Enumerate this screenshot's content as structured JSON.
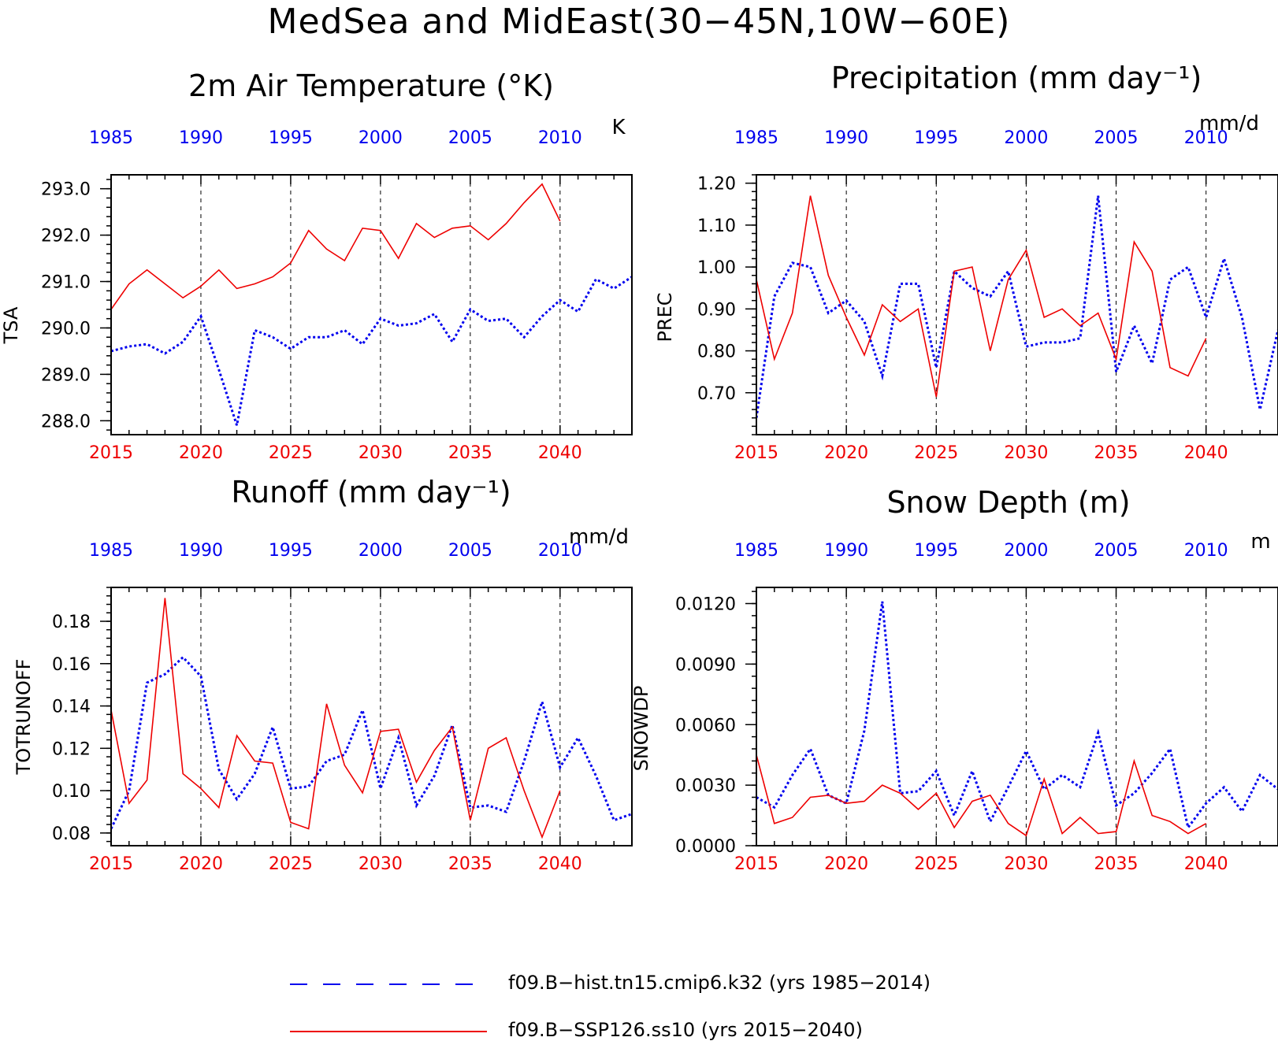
{
  "title": "MedSea and MidEast(30−45N,10W−60E)",
  "colors": {
    "hist": "#0000ee",
    "ssp": "#ee0000"
  },
  "legend": [
    {
      "label": "f09.B−hist.tn15.cmip6.k32 (yrs 1985−2014)",
      "style": "dashed",
      "color": "#0000ee"
    },
    {
      "label": "f09.B−SSP126.ss10 (yrs 2015−2040)",
      "style": "solid",
      "color": "#ee0000"
    }
  ],
  "chart_data": [
    {
      "type": "line",
      "title": "2m Air Temperature (°K)",
      "ylabel": "TSA",
      "unit": "K",
      "ylim": [
        287.7,
        293.3
      ],
      "yticks": [
        "288.0",
        "289.0",
        "290.0",
        "291.0",
        "292.0",
        "293.0"
      ],
      "xlim_bottom": [
        2015,
        2044
      ],
      "xticks_bottom": [
        2015,
        2020,
        2025,
        2030,
        2035,
        2040
      ],
      "xticks_top": [
        1985,
        1990,
        1995,
        2000,
        2005,
        2010
      ],
      "series": [
        {
          "name": "f09.B−hist.tn15.cmip6.k32",
          "style": "dotted",
          "values": [
            289.5,
            289.6,
            289.65,
            289.45,
            289.7,
            290.25,
            289.1,
            287.9,
            289.95,
            289.8,
            289.55,
            289.8,
            289.8,
            289.95,
            289.65,
            290.2,
            290.05,
            290.1,
            290.3,
            289.7,
            290.4,
            290.15,
            290.2,
            289.8,
            290.25,
            290.6,
            290.35,
            291.05,
            290.85,
            291.1
          ]
        },
        {
          "name": "f09.B−SSP126.ss10",
          "style": "solid",
          "values": [
            290.4,
            290.95,
            291.25,
            290.95,
            290.65,
            290.9,
            291.25,
            290.85,
            290.95,
            291.1,
            291.4,
            292.1,
            291.7,
            291.45,
            292.15,
            292.1,
            291.5,
            292.25,
            291.95,
            292.15,
            292.2,
            291.9,
            292.25,
            292.7,
            293.1,
            292.3
          ]
        }
      ]
    },
    {
      "type": "line",
      "title": "Precipitation (mm day⁻¹)",
      "ylabel": "PREC",
      "unit": "mm/d",
      "ylim": [
        0.6,
        1.22
      ],
      "yticks": [
        "0.70",
        "0.80",
        "0.90",
        "1.00",
        "1.10",
        "1.20"
      ],
      "xlim_bottom": [
        2015,
        2044
      ],
      "xticks_bottom": [
        2015,
        2020,
        2025,
        2030,
        2035,
        2040
      ],
      "xticks_top": [
        1985,
        1990,
        1995,
        2000,
        2005,
        2010
      ],
      "series": [
        {
          "name": "f09.B−hist.tn15.cmip6.k32",
          "style": "dotted",
          "values": [
            0.64,
            0.93,
            1.01,
            1.0,
            0.89,
            0.92,
            0.87,
            0.74,
            0.96,
            0.96,
            0.76,
            0.99,
            0.95,
            0.93,
            0.99,
            0.81,
            0.82,
            0.82,
            0.83,
            1.17,
            0.75,
            0.86,
            0.77,
            0.97,
            1.0,
            0.88,
            1.02,
            0.88,
            0.66,
            0.85
          ]
        },
        {
          "name": "f09.B−SSP126.ss10",
          "style": "solid",
          "values": [
            0.97,
            0.78,
            0.89,
            1.17,
            0.98,
            0.88,
            0.79,
            0.91,
            0.87,
            0.9,
            0.69,
            0.99,
            1.0,
            0.8,
            0.97,
            1.04,
            0.88,
            0.9,
            0.86,
            0.89,
            0.78,
            1.06,
            0.99,
            0.76,
            0.74,
            0.83
          ]
        }
      ]
    },
    {
      "type": "line",
      "title": "Runoff (mm day⁻¹)",
      "ylabel": "TOTRUNOFF",
      "unit": "mm/d",
      "ylim": [
        0.074,
        0.196
      ],
      "yticks": [
        "0.08",
        "0.10",
        "0.12",
        "0.14",
        "0.16",
        "0.18"
      ],
      "xlim_bottom": [
        2015,
        2044
      ],
      "xticks_bottom": [
        2015,
        2020,
        2025,
        2030,
        2035,
        2040
      ],
      "xticks_top": [
        1985,
        1990,
        1995,
        2000,
        2005,
        2010
      ],
      "series": [
        {
          "name": "f09.B−hist.tn15.cmip6.k32",
          "style": "dotted",
          "values": [
            0.082,
            0.1,
            0.151,
            0.155,
            0.163,
            0.154,
            0.11,
            0.096,
            0.108,
            0.13,
            0.101,
            0.102,
            0.114,
            0.117,
            0.138,
            0.101,
            0.125,
            0.093,
            0.107,
            0.131,
            0.092,
            0.093,
            0.09,
            0.114,
            0.142,
            0.111,
            0.125,
            0.107,
            0.086,
            0.089
          ]
        },
        {
          "name": "f09.B−SSP126.ss10",
          "style": "solid",
          "values": [
            0.138,
            0.094,
            0.105,
            0.191,
            0.108,
            0.101,
            0.092,
            0.126,
            0.114,
            0.113,
            0.085,
            0.082,
            0.141,
            0.112,
            0.099,
            0.128,
            0.129,
            0.104,
            0.119,
            0.13,
            0.086,
            0.12,
            0.125,
            0.1,
            0.078,
            0.1
          ]
        }
      ]
    },
    {
      "type": "line",
      "title": "Snow Depth (m)",
      "ylabel": "SNOWDP",
      "unit": "m",
      "ylim": [
        0.0,
        0.0128
      ],
      "yticks": [
        "0.0000",
        "0.0030",
        "0.0060",
        "0.0090",
        "0.0120"
      ],
      "xlim_bottom": [
        2015,
        2044
      ],
      "xticks_bottom": [
        2015,
        2020,
        2025,
        2030,
        2035,
        2040
      ],
      "xticks_top": [
        1985,
        1990,
        1995,
        2000,
        2005,
        2010
      ],
      "series": [
        {
          "name": "f09.B−hist.tn15.cmip6.k32",
          "style": "dotted",
          "values": [
            0.0024,
            0.0019,
            0.0035,
            0.0048,
            0.0025,
            0.0021,
            0.0057,
            0.0121,
            0.0026,
            0.0027,
            0.0037,
            0.0015,
            0.0037,
            0.0012,
            0.0029,
            0.0047,
            0.0028,
            0.0035,
            0.0029,
            0.0056,
            0.002,
            0.0026,
            0.0036,
            0.0048,
            0.0009,
            0.0021,
            0.0029,
            0.0017,
            0.0035,
            0.0028
          ]
        },
        {
          "name": "f09.B−SSP126.ss10",
          "style": "solid",
          "values": [
            0.0045,
            0.0011,
            0.0014,
            0.0024,
            0.0025,
            0.0021,
            0.0022,
            0.003,
            0.0026,
            0.0018,
            0.0026,
            0.0009,
            0.0022,
            0.0025,
            0.0011,
            0.0005,
            0.0033,
            0.0006,
            0.0014,
            0.0006,
            0.0007,
            0.0042,
            0.0015,
            0.0012,
            0.0006,
            0.0011
          ]
        }
      ]
    }
  ]
}
